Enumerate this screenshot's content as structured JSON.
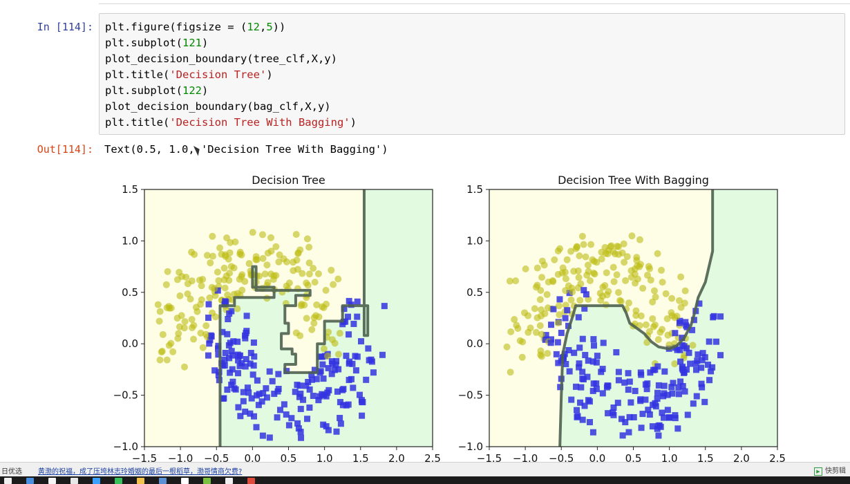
{
  "notebook": {
    "in_prompt": "In [114]:",
    "out_prompt": "Out[114]:",
    "code_lines": [
      [
        {
          "t": "plt.figure(figsize = (",
          "c": ""
        },
        {
          "t": "12",
          "c": "n"
        },
        {
          "t": ",",
          "c": ""
        },
        {
          "t": "5",
          "c": "n"
        },
        {
          "t": "))",
          "c": ""
        }
      ],
      [
        {
          "t": "plt.subplot(",
          "c": ""
        },
        {
          "t": "121",
          "c": "n"
        },
        {
          "t": ")",
          "c": ""
        }
      ],
      [
        {
          "t": "plot_decision_boundary(tree_clf,X,y)",
          "c": ""
        }
      ],
      [
        {
          "t": "plt.title(",
          "c": ""
        },
        {
          "t": "'Decision Tree'",
          "c": "s"
        },
        {
          "t": ")",
          "c": ""
        }
      ],
      [
        {
          "t": "plt.subplot(",
          "c": ""
        },
        {
          "t": "122",
          "c": "n"
        },
        {
          "t": ")",
          "c": ""
        }
      ],
      [
        {
          "t": "plot_decision_boundary(bag_clf,X,y)",
          "c": ""
        }
      ],
      [
        {
          "t": "plt.title(",
          "c": ""
        },
        {
          "t": "'Decision Tree With Bagging'",
          "c": "s"
        },
        {
          "t": ")",
          "c": ""
        }
      ]
    ],
    "output_text": "Text(0.5, 1.0, 'Decision Tree With Bagging')"
  },
  "chart_data": [
    {
      "type": "scatter",
      "title": "Decision Tree",
      "xlim": [
        -1.5,
        2.5
      ],
      "ylim": [
        -1.0,
        1.5
      ],
      "xticks": [
        "−1.5",
        "−1.0",
        "−0.5",
        "0.0",
        "0.5",
        "1.0",
        "1.5",
        "2.0",
        "2.5"
      ],
      "yticks": [
        "−1.0",
        "−0.5",
        "0.0",
        "0.5",
        "1.0",
        "1.5"
      ],
      "regions": {
        "class0": "#fefde6",
        "class1": "#e2fae0"
      },
      "boundary": [
        [
          -0.45,
          -1.0
        ],
        [
          -0.45,
          0.37
        ],
        [
          -0.25,
          0.37
        ],
        [
          -0.25,
          0.45
        ],
        [
          0.3,
          0.45
        ],
        [
          0.3,
          0.55
        ],
        [
          0.0,
          0.55
        ],
        [
          0.0,
          0.75
        ],
        [
          0.05,
          0.75
        ],
        [
          0.05,
          0.52
        ],
        [
          0.8,
          0.52
        ],
        [
          0.8,
          0.47
        ],
        [
          0.6,
          0.47
        ],
        [
          0.6,
          0.37
        ],
        [
          0.45,
          0.37
        ],
        [
          0.45,
          0.2
        ],
        [
          0.5,
          0.2
        ],
        [
          0.5,
          0.1
        ],
        [
          0.4,
          0.1
        ],
        [
          0.4,
          -0.05
        ],
        [
          0.55,
          -0.05
        ],
        [
          0.55,
          -0.1
        ],
        [
          0.6,
          -0.1
        ],
        [
          0.6,
          -0.2
        ],
        [
          0.45,
          -0.2
        ],
        [
          0.45,
          -0.28
        ],
        [
          0.9,
          -0.28
        ],
        [
          0.9,
          0.0
        ],
        [
          1.0,
          0.0
        ],
        [
          1.0,
          0.22
        ],
        [
          1.25,
          0.22
        ],
        [
          1.25,
          0.37
        ],
        [
          1.6,
          0.37
        ],
        [
          1.6,
          0.08
        ],
        [
          1.55,
          0.08
        ],
        [
          1.55,
          1.5
        ]
      ],
      "series": [
        {
          "marker": "square",
          "color": "#3434e0"
        },
        {
          "marker": "circle",
          "color": "#bcbc14"
        }
      ]
    },
    {
      "type": "scatter",
      "title": "Decision Tree With Bagging",
      "xlim": [
        -1.5,
        2.5
      ],
      "ylim": [
        -1.0,
        1.5
      ],
      "xticks": [
        "−1.5",
        "−1.0",
        "−0.5",
        "0.0",
        "0.5",
        "1.0",
        "1.5",
        "2.0",
        "2.5"
      ],
      "yticks": [
        "−1.0",
        "−0.5",
        "0.0",
        "0.5",
        "1.0",
        "1.5"
      ],
      "regions": {
        "class0": "#fefde6",
        "class1": "#e2fae0"
      },
      "boundary": [
        [
          -0.52,
          -1.0
        ],
        [
          -0.5,
          -0.5
        ],
        [
          -0.48,
          -0.1
        ],
        [
          -0.42,
          0.1
        ],
        [
          -0.35,
          0.25
        ],
        [
          -0.3,
          0.37
        ],
        [
          0.35,
          0.37
        ],
        [
          0.4,
          0.3
        ],
        [
          0.45,
          0.2
        ],
        [
          0.55,
          0.15
        ],
        [
          0.65,
          0.1
        ],
        [
          0.75,
          0.02
        ],
        [
          0.85,
          -0.03
        ],
        [
          1.0,
          -0.05
        ],
        [
          1.1,
          -0.02
        ],
        [
          1.2,
          0.05
        ],
        [
          1.3,
          0.18
        ],
        [
          1.35,
          0.3
        ],
        [
          1.4,
          0.45
        ],
        [
          1.5,
          0.6
        ],
        [
          1.55,
          0.75
        ],
        [
          1.6,
          0.9
        ],
        [
          1.6,
          1.5
        ]
      ],
      "series": [
        {
          "marker": "square",
          "color": "#3434e0"
        },
        {
          "marker": "circle",
          "color": "#bcbc14"
        }
      ]
    }
  ],
  "statusbar": {
    "left": "日优选",
    "news": "黄渤的祝福，成了压垮林志玲婚姻的最后一根稻草，渤哥情商欠费?",
    "right": "快剪辑"
  },
  "taskbar_icons": [
    "#f0f0f0",
    "#4a90e2",
    "#f5f5f5",
    "#e8e8e8",
    "#3aa0ff",
    "#36c15a",
    "#f3c24a",
    "#5b8fd6",
    "#ffffff",
    "#7ac142",
    "#f0f0f0",
    "#e04a3a"
  ]
}
